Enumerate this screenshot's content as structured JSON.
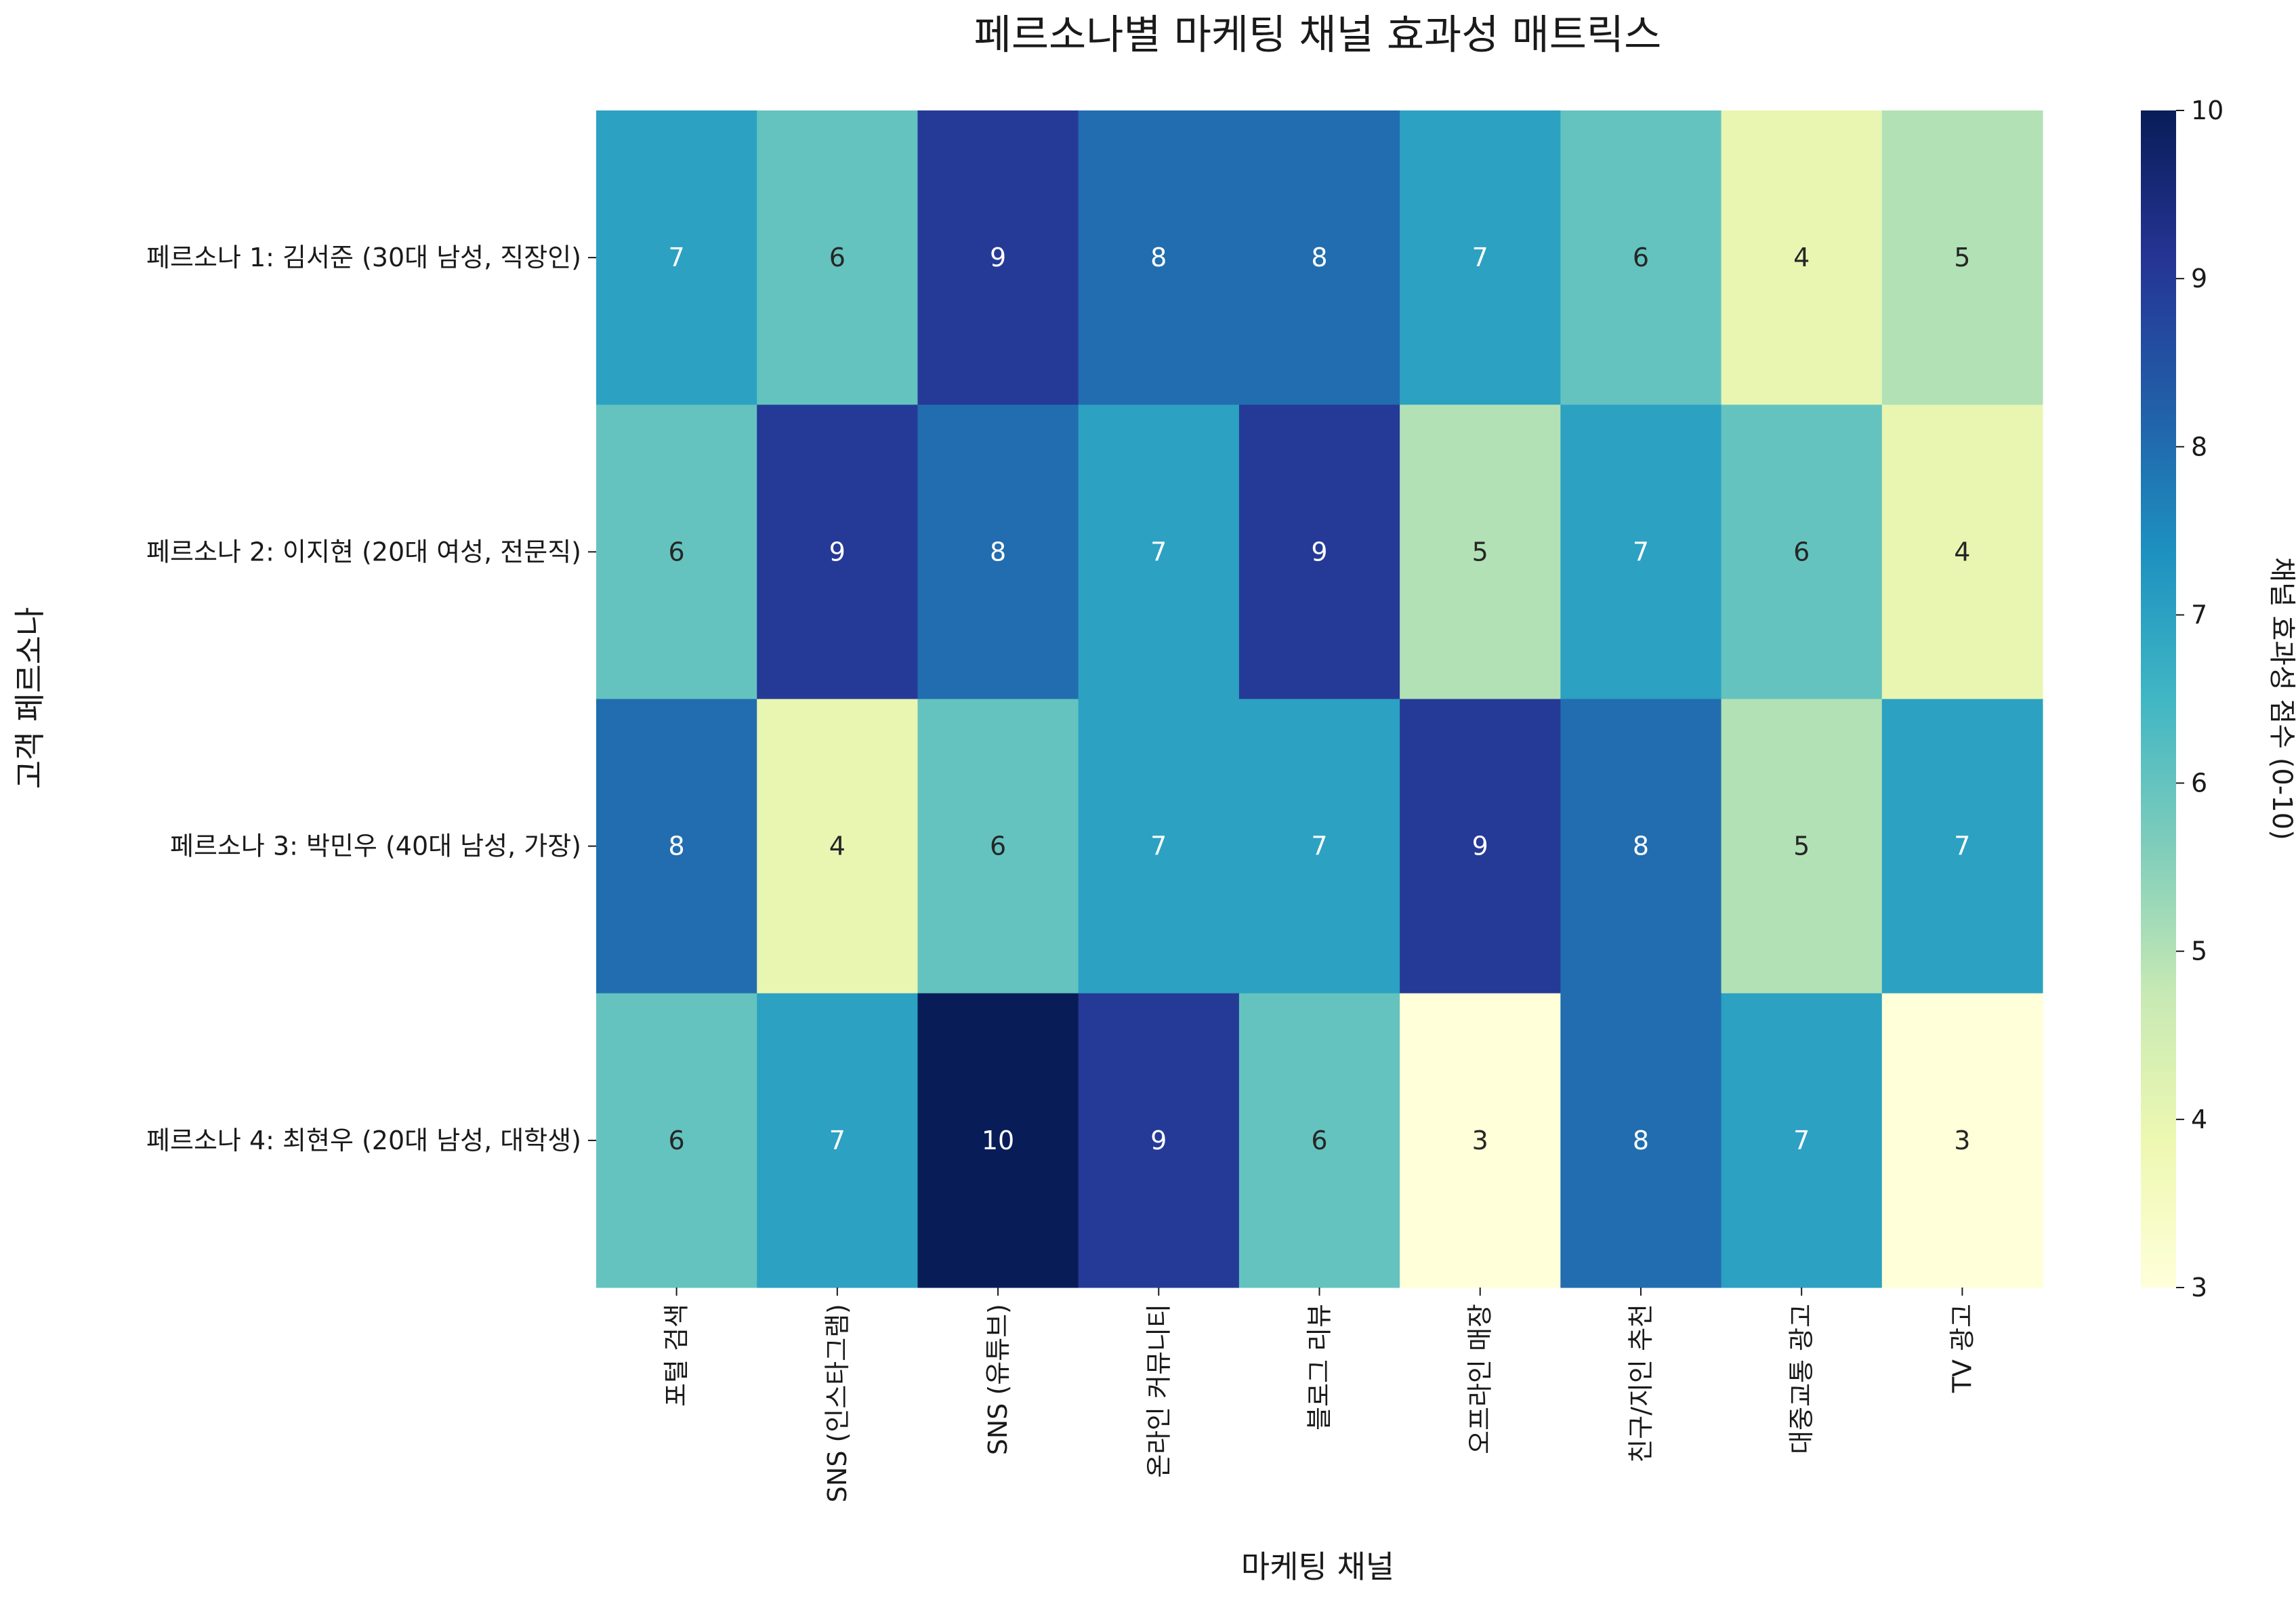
{
  "chart_data": {
    "type": "heatmap",
    "title": "페르소나별 마케팅 채널 효과성 매트릭스",
    "xlabel": "마케팅 채널",
    "ylabel": "고객 페르소나",
    "colorbar_label": "채널 효과성 점수 (0-10)",
    "colormap": "YlGnBu",
    "vmin": 3,
    "vmax": 10,
    "colorbar_ticks": [
      3,
      4,
      5,
      6,
      7,
      8,
      9,
      10
    ],
    "columns": [
      "포털 검색",
      "SNS (인스타그램)",
      "SNS (유튜브)",
      "온라인 커뮤니티",
      "블로그 리뷰",
      "오프라인 매장",
      "친구/지인 추천",
      "대중교통 광고",
      "TV 광고"
    ],
    "rows": [
      "페르소나 1: 김서준 (30대 남성, 직장인)",
      "페르소나 2: 이지현 (20대 여성, 전문직)",
      "페르소나 3: 박민우 (40대 남성, 가장)",
      "페르소나 4: 최현우 (20대 남성, 대학생)"
    ],
    "values": [
      [
        7,
        6,
        9,
        8,
        8,
        7,
        6,
        4,
        5
      ],
      [
        6,
        9,
        8,
        7,
        9,
        5,
        7,
        6,
        4
      ],
      [
        8,
        4,
        6,
        7,
        7,
        9,
        8,
        5,
        7
      ],
      [
        6,
        7,
        10,
        9,
        6,
        3,
        8,
        7,
        3
      ]
    ]
  }
}
